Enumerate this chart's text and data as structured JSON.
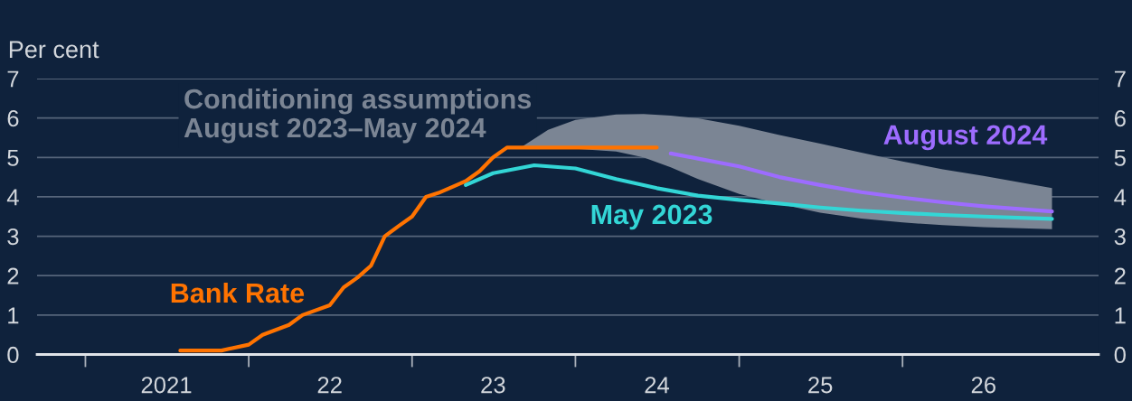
{
  "chart_data": {
    "type": "line",
    "ylabel": "Per cent",
    "xlim": [
      "2020-09-15",
      "2027-03-15"
    ],
    "xticks": [
      {
        "value": "2021-01",
        "label": null
      },
      {
        "value": "2022-01",
        "label": null
      },
      {
        "value": "2023-01",
        "label": null
      },
      {
        "value": "2024-01",
        "label": null
      },
      {
        "value": "2025-01",
        "label": null
      },
      {
        "value": "2026-01",
        "label": null
      },
      {
        "value": "2021-07",
        "label": "2021"
      },
      {
        "value": "2022-07",
        "label": "22"
      },
      {
        "value": "2023-07",
        "label": "23"
      },
      {
        "value": "2024-07",
        "label": "24"
      },
      {
        "value": "2025-07",
        "label": "25"
      },
      {
        "value": "2026-07",
        "label": "26"
      }
    ],
    "ylim": [
      0,
      7
    ],
    "yticks": [
      0,
      1,
      2,
      3,
      4,
      5,
      6,
      7
    ],
    "y2lim": [
      0,
      7
    ],
    "y2ticks": [
      0,
      1,
      2,
      3,
      4,
      5,
      6,
      7
    ],
    "grid": "y",
    "line_style": "solid",
    "series": [
      {
        "name": "Conditioning assumptions\nAugust 2023–May 2024",
        "type": "area",
        "color": "#7b8594",
        "x": [
          "2023-09",
          "2023-11",
          "2024-01",
          "2024-04",
          "2024-06",
          "2024-08",
          "2024-10",
          "2025-01",
          "2025-04",
          "2025-07",
          "2025-10",
          "2026-01",
          "2026-04",
          "2026-07",
          "2026-12"
        ],
        "values": [
          null,
          null,
          null,
          null,
          null,
          null,
          null,
          null,
          null,
          null,
          null,
          null,
          null,
          null,
          null
        ],
        "upper": [
          5.25,
          5.7,
          5.95,
          6.09,
          6.1,
          6.06,
          5.99,
          5.8,
          5.57,
          5.35,
          5.12,
          4.9,
          4.7,
          4.53,
          4.22
        ],
        "lower": [
          5.25,
          5.25,
          5.22,
          5.15,
          5.0,
          4.75,
          4.45,
          4.07,
          3.82,
          3.6,
          3.45,
          3.35,
          3.28,
          3.23,
          3.18
        ]
      },
      {
        "name": "Bank Rate",
        "color": "#ff7300",
        "x": [
          "2021-08",
          "2021-11",
          "2022-01",
          "2022-02",
          "2022-04",
          "2022-05",
          "2022-07",
          "2022-08",
          "2022-09",
          "2022-10",
          "2022-11",
          "2022-12",
          "2023-01",
          "2023-02",
          "2023-03",
          "2023-05",
          "2023-06",
          "2023-07",
          "2023-08",
          "2024-07"
        ],
        "values": [
          0.1,
          0.1,
          0.25,
          0.5,
          0.75,
          1.0,
          1.25,
          1.7,
          1.95,
          2.25,
          3.0,
          3.25,
          3.5,
          4.0,
          4.1,
          4.4,
          4.65,
          5.0,
          5.25,
          5.25
        ]
      },
      {
        "name": "May 2023",
        "color": "#33d6d6",
        "x": [
          "2023-05",
          "2023-07",
          "2023-10",
          "2024-01",
          "2024-04",
          "2024-07",
          "2024-10",
          "2025-01",
          "2025-04",
          "2025-07",
          "2025-10",
          "2026-01",
          "2026-04",
          "2026-07",
          "2026-12"
        ],
        "values": [
          4.3,
          4.6,
          4.8,
          4.72,
          4.45,
          4.22,
          4.03,
          3.92,
          3.83,
          3.73,
          3.65,
          3.59,
          3.54,
          3.5,
          3.44
        ]
      },
      {
        "name": "August 2024",
        "color": "#9d6cff",
        "x": [
          "2024-08",
          "2024-10",
          "2025-01",
          "2025-04",
          "2025-07",
          "2025-10",
          "2026-01",
          "2026-04",
          "2026-07",
          "2026-12"
        ],
        "values": [
          5.1,
          4.97,
          4.77,
          4.5,
          4.3,
          4.12,
          3.98,
          3.86,
          3.76,
          3.63
        ]
      }
    ]
  }
}
